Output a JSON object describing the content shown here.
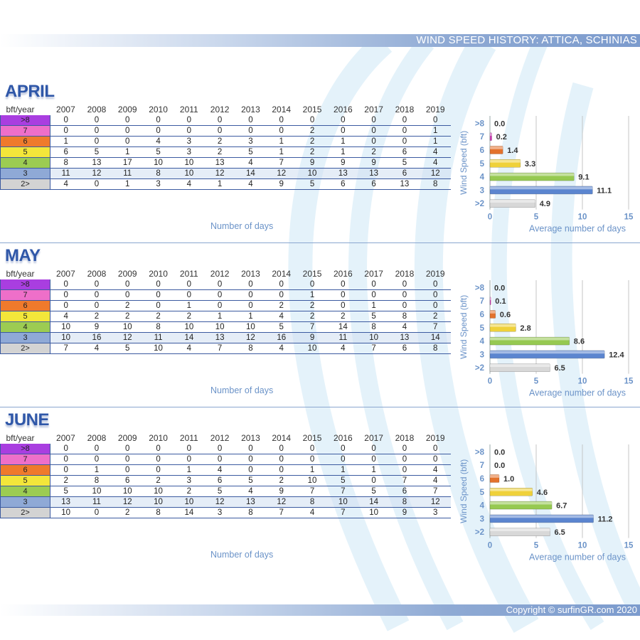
{
  "header": {
    "title": "WIND SPEED HISTORY: ATTICA, SCHINIAS"
  },
  "footer": {
    "copyright": "Copyright © surfinGR.com 2020"
  },
  "table": {
    "corner_label": "bft/year",
    "years": [
      "2007",
      "2008",
      "2009",
      "2010",
      "2011",
      "2012",
      "2013",
      "2014",
      "2015",
      "2016",
      "2017",
      "2018",
      "2019"
    ],
    "row_labels": [
      ">8",
      "7",
      "6",
      "5",
      "4",
      "3",
      "2>"
    ],
    "row_colors": [
      "#a93ee0",
      "#ee6fc9",
      "#ef7a2c",
      "#f3e63a",
      "#9ccc52",
      "#8fa9d6",
      "#d3d3d3"
    ],
    "x_caption": "Number of days"
  },
  "colors": {
    "bar_gt8": "#a93ee0",
    "bar_7": "#d23eb8",
    "bar_6": "#e3722c",
    "bar_5": "#efd13a",
    "bar_4": "#96c951",
    "bar_3": "#5b85cf",
    "bar_2": "#d8d8d8",
    "accent": "#2f57a8",
    "axis_text": "#6b93c8"
  },
  "months": [
    {
      "name": "APRIL",
      "rows": [
        [
          "0",
          "0",
          "0",
          "0",
          "0",
          "0",
          "0",
          "0",
          "0",
          "0",
          "0",
          "0",
          "0"
        ],
        [
          "0",
          "0",
          "0",
          "0",
          "0",
          "0",
          "0",
          "0",
          "2",
          "0",
          "0",
          "0",
          "1"
        ],
        [
          "1",
          "0",
          "0",
          "4",
          "3",
          "2",
          "3",
          "1",
          "2",
          "1",
          "0",
          "0",
          "1"
        ],
        [
          "6",
          "5",
          "1",
          "5",
          "3",
          "2",
          "5",
          "1",
          "2",
          "1",
          "2",
          "6",
          "4"
        ],
        [
          "8",
          "13",
          "17",
          "10",
          "10",
          "13",
          "4",
          "7",
          "9",
          "9",
          "9",
          "5",
          "4"
        ],
        [
          "11",
          "12",
          "11",
          "8",
          "10",
          "12",
          "14",
          "12",
          "10",
          "13",
          "13",
          "6",
          "12"
        ],
        [
          "4",
          "0",
          "1",
          "3",
          "4",
          "1",
          "4",
          "9",
          "5",
          "6",
          "6",
          "13",
          "8"
        ]
      ]
    },
    {
      "name": "MAY",
      "rows": [
        [
          "0",
          "0",
          "0",
          "0",
          "0",
          "0",
          "0",
          "0",
          "0",
          "0",
          "0",
          "0",
          "0"
        ],
        [
          "0",
          "0",
          "0",
          "0",
          "0",
          "0",
          "0",
          "0",
          "1",
          "0",
          "0",
          "0",
          "0"
        ],
        [
          "0",
          "0",
          "2",
          "0",
          "1",
          "0",
          "0",
          "2",
          "2",
          "0",
          "1",
          "0",
          "0"
        ],
        [
          "4",
          "2",
          "2",
          "2",
          "2",
          "1",
          "1",
          "4",
          "2",
          "2",
          "5",
          "8",
          "2"
        ],
        [
          "10",
          "9",
          "10",
          "8",
          "10",
          "10",
          "10",
          "5",
          "7",
          "14",
          "8",
          "4",
          "7"
        ],
        [
          "10",
          "16",
          "12",
          "11",
          "14",
          "13",
          "12",
          "16",
          "9",
          "11",
          "10",
          "13",
          "14"
        ],
        [
          "7",
          "4",
          "5",
          "10",
          "4",
          "7",
          "8",
          "4",
          "10",
          "4",
          "7",
          "6",
          "8"
        ]
      ]
    },
    {
      "name": "JUNE",
      "rows": [
        [
          "0",
          "0",
          "0",
          "0",
          "0",
          "0",
          "0",
          "0",
          "0",
          "0",
          "0",
          "0",
          "0"
        ],
        [
          "0",
          "0",
          "0",
          "0",
          "0",
          "0",
          "0",
          "0",
          "0",
          "0",
          "0",
          "0",
          "0"
        ],
        [
          "0",
          "1",
          "0",
          "0",
          "1",
          "4",
          "0",
          "0",
          "1",
          "1",
          "1",
          "0",
          "4"
        ],
        [
          "2",
          "8",
          "6",
          "2",
          "3",
          "6",
          "5",
          "2",
          "10",
          "5",
          "0",
          "7",
          "4"
        ],
        [
          "5",
          "10",
          "10",
          "10",
          "2",
          "5",
          "4",
          "9",
          "7",
          "7",
          "5",
          "6",
          "7"
        ],
        [
          "13",
          "11",
          "12",
          "10",
          "10",
          "12",
          "13",
          "12",
          "8",
          "10",
          "14",
          "8",
          "12"
        ],
        [
          "10",
          "0",
          "2",
          "8",
          "14",
          "3",
          "8",
          "7",
          "4",
          "7",
          "10",
          "9",
          "3"
        ]
      ]
    }
  ],
  "chart_data": [
    {
      "type": "bar",
      "orientation": "horizontal",
      "categories": [
        ">8",
        "7",
        "6",
        "5",
        "4",
        "3",
        ">2"
      ],
      "values": [
        0.0,
        0.2,
        1.4,
        3.3,
        9.1,
        11.1,
        4.9
      ],
      "value_labels": [
        "0.0",
        "0.2",
        "1.4",
        "3.3",
        "9.1",
        "11.1",
        "4.9"
      ],
      "xlabel": "Average number of days",
      "ylabel": "Wind Speed (bft)",
      "xlim": [
        0,
        15
      ],
      "xticks": [
        "0",
        "5",
        "10",
        "15"
      ],
      "grid": true
    },
    {
      "type": "bar",
      "orientation": "horizontal",
      "categories": [
        ">8",
        "7",
        "6",
        "5",
        "4",
        "3",
        ">2"
      ],
      "values": [
        0.0,
        0.1,
        0.6,
        2.8,
        8.6,
        12.4,
        6.5
      ],
      "value_labels": [
        "0.0",
        "0.1",
        "0.6",
        "2.8",
        "8.6",
        "12.4",
        "6.5"
      ],
      "xlabel": "Average number of days",
      "ylabel": "Wind Speed (bft)",
      "xlim": [
        0,
        15
      ],
      "xticks": [
        "0",
        "5",
        "10",
        "15"
      ],
      "grid": true
    },
    {
      "type": "bar",
      "orientation": "horizontal",
      "categories": [
        ">8",
        "7",
        "6",
        "5",
        "4",
        "3",
        ">2"
      ],
      "values": [
        0.0,
        0.0,
        1.0,
        4.6,
        6.7,
        11.2,
        6.5
      ],
      "value_labels": [
        "0.0",
        "0.0",
        "1.0",
        "4.6",
        "6.7",
        "11.2",
        "6.5"
      ],
      "xlabel": "Average number of days",
      "ylabel": "Wind Speed (bft)",
      "xlim": [
        0,
        15
      ],
      "xticks": [
        "0",
        "5",
        "10",
        "15"
      ],
      "grid": true
    }
  ]
}
